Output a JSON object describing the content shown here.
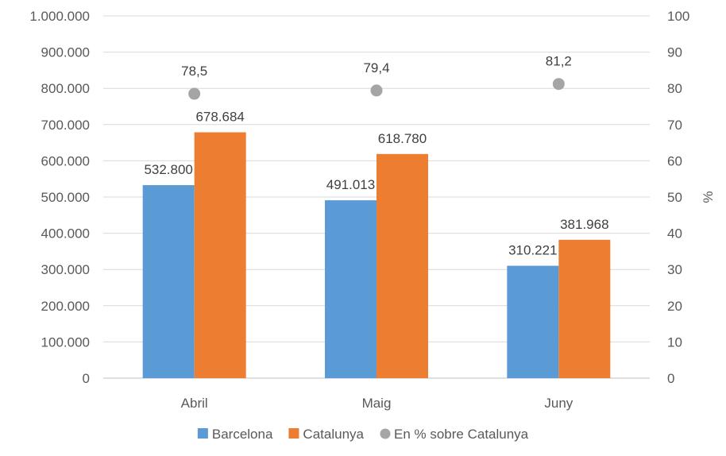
{
  "chart_data": {
    "type": "bar",
    "categories": [
      "Abril",
      "Maig",
      "Juny"
    ],
    "series": [
      {
        "name": "Barcelona",
        "kind": "bar",
        "axis": "left",
        "color": "#5B9BD5",
        "values": [
          532800,
          491013,
          310221
        ],
        "labels": [
          "532.800",
          "491.013",
          "310.221"
        ]
      },
      {
        "name": "Catalunya",
        "kind": "bar",
        "axis": "left",
        "color": "#ED7D31",
        "values": [
          678684,
          618780,
          381968
        ],
        "labels": [
          "678.684",
          "618.780",
          "381.968"
        ]
      },
      {
        "name": "En % sobre Catalunya",
        "kind": "scatter",
        "axis": "right",
        "color": "#A5A5A5",
        "values": [
          78.5,
          79.4,
          81.2
        ],
        "labels": [
          "78,5",
          "79,4",
          "81,2"
        ]
      }
    ],
    "y_left": {
      "range": [
        0,
        1000000
      ],
      "ticks": [
        0,
        100000,
        200000,
        300000,
        400000,
        500000,
        600000,
        700000,
        800000,
        900000,
        1000000
      ],
      "tick_labels": [
        "0",
        "100.000",
        "200.000",
        "300.000",
        "400.000",
        "500.000",
        "600.000",
        "700.000",
        "800.000",
        "900.000",
        "1.000.000"
      ]
    },
    "y_right": {
      "label": "%",
      "range": [
        0,
        100
      ],
      "ticks": [
        0,
        10,
        20,
        30,
        40,
        50,
        60,
        70,
        80,
        90,
        100
      ],
      "tick_labels": [
        "0",
        "10",
        "20",
        "30",
        "40",
        "50",
        "60",
        "70",
        "80",
        "90",
        "100"
      ]
    },
    "grid": true,
    "gridline_color": "#D9D9D9",
    "legend_position": "bottom"
  }
}
